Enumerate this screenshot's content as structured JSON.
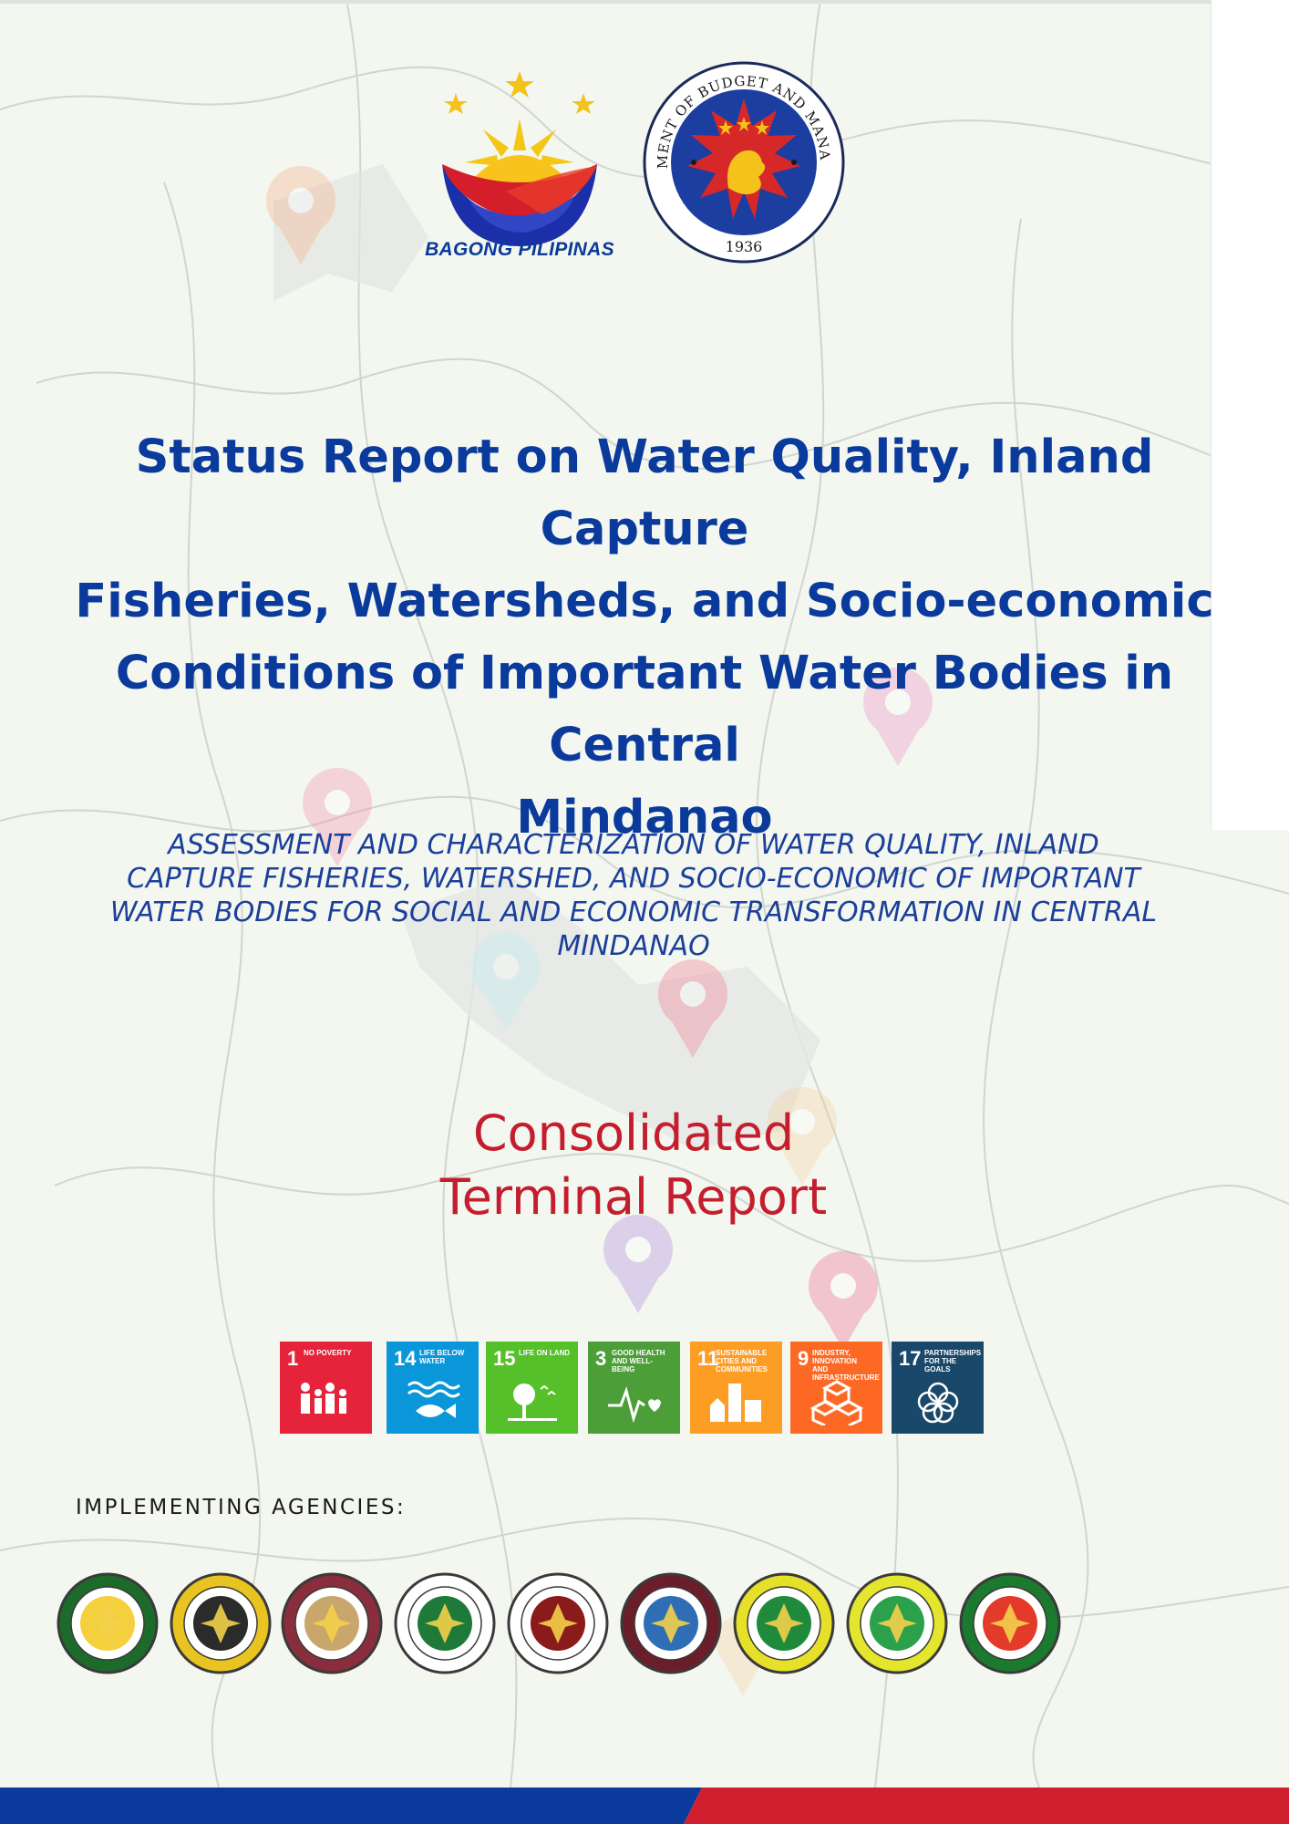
{
  "header": {
    "bagong_pilipinas_text": "BAGONG PILIPINAS",
    "dbm_seal_top_text": "DEPARTMENT OF BUDGET AND MANAGEMENT",
    "dbm_seal_year": "1936"
  },
  "title_lines": [
    "Status Report on Water Quality, Inland Capture",
    "Fisheries, Watersheds, and Socio-economic",
    "Conditions of Important Water Bodies in Central",
    "Mindanao"
  ],
  "subtitle_lines": [
    "ASSESSMENT AND CHARACTERIZATION OF WATER QUALITY, INLAND",
    "CAPTURE FISHERIES, WATERSHED, AND SOCIO-ECONOMIC OF IMPORTANT",
    "WATER BODIES FOR SOCIAL AND ECONOMIC TRANSFORMATION IN CENTRAL",
    "MINDANAO"
  ],
  "report_type_lines": [
    "Consolidated",
    "Terminal Report"
  ],
  "sdg_goals": [
    {
      "number": "1",
      "label": "NO POVERTY",
      "color": "#e5243b",
      "icon": "people-icon"
    },
    {
      "number": "14",
      "label": "LIFE BELOW WATER",
      "color": "#0a97d9",
      "icon": "fish-icon"
    },
    {
      "number": "15",
      "label": "LIFE ON LAND",
      "color": "#56c02b",
      "icon": "tree-icon"
    },
    {
      "number": "3",
      "label": "GOOD HEALTH AND WELL-BEING",
      "color": "#4c9f38",
      "icon": "heartbeat-icon"
    },
    {
      "number": "11",
      "label": "SUSTAINABLE CITIES AND COMMUNITIES",
      "color": "#fd9d24",
      "icon": "buildings-icon"
    },
    {
      "number": "9",
      "label": "INDUSTRY, INNOVATION AND INFRASTRUCTURE",
      "color": "#fd6925",
      "icon": "cubes-icon"
    },
    {
      "number": "17",
      "label": "PARTNERSHIPS FOR THE GOALS",
      "color": "#19486a",
      "icon": "rings-icon"
    }
  ],
  "agencies_label": "IMPLEMENTING AGENCIES:",
  "agency_seals": [
    {
      "icon": "school-seal-icon",
      "ring": "#1d6b2a",
      "inner": "#f4d03f"
    },
    {
      "icon": "school-seal-icon",
      "ring": "#e9c420",
      "inner": "#2b2b2b"
    },
    {
      "icon": "school-seal-icon",
      "ring": "#8a2d3c",
      "inner": "#c9a66b"
    },
    {
      "icon": "school-seal-icon",
      "ring": "#ffffff",
      "inner": "#1f7a3a"
    },
    {
      "icon": "school-seal-icon",
      "ring": "#ffffff",
      "inner": "#8b1a1a"
    },
    {
      "icon": "school-seal-icon",
      "ring": "#6b1d2a",
      "inner": "#2f6db5"
    },
    {
      "icon": "school-seal-icon",
      "ring": "#e6e02a",
      "inner": "#1f8a3c"
    },
    {
      "icon": "school-seal-icon",
      "ring": "#e3e62c",
      "inner": "#2aa14a"
    },
    {
      "icon": "school-seal-icon",
      "ring": "#1b7a2e",
      "inner": "#e33a2a"
    }
  ],
  "colors": {
    "title_blue": "#0a3a9c",
    "report_red": "#c41e2e",
    "bar_blue": "#0a3a9c",
    "bar_red": "#cf1f2e"
  }
}
